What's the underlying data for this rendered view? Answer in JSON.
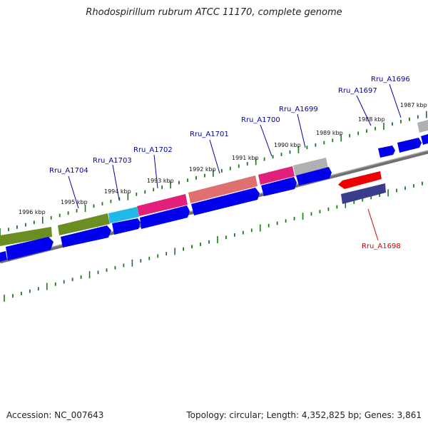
{
  "title": "Rhodospirillum rubrum ATCC 11170, complete genome",
  "footer": {
    "accession": "Accession: NC_007643",
    "summary": "Topology: circular; Length: 4,352,825 bp; Genes: 3,861"
  },
  "colors": {
    "backbone": "#808080",
    "tick": "#1a7a1a",
    "cds": "#0000ee",
    "label_link": "#0000aa",
    "label_highlight": "#dd0000"
  },
  "kbp_labels": [
    "1996 kbp",
    "1995 kbp",
    "1994 kbp",
    "1993 kbp",
    "1992 kbp",
    "1991 kbp",
    "1990 kbp",
    "1989 kbp",
    "1988 kbp",
    "1987 kbp"
  ],
  "gene_labels": [
    {
      "text": "Rru_A1704",
      "highlight": false
    },
    {
      "text": "Rru_A1703",
      "highlight": false
    },
    {
      "text": "Rru_A1702",
      "highlight": false
    },
    {
      "text": "Rru_A1701",
      "highlight": false
    },
    {
      "text": "Rru_A1700",
      "highlight": false
    },
    {
      "text": "Rru_A1699",
      "highlight": false
    },
    {
      "text": "Rru_A1697",
      "highlight": false
    },
    {
      "text": "Rru_A1696",
      "highlight": false
    },
    {
      "text": "Rru_A1698",
      "highlight": true
    }
  ]
}
